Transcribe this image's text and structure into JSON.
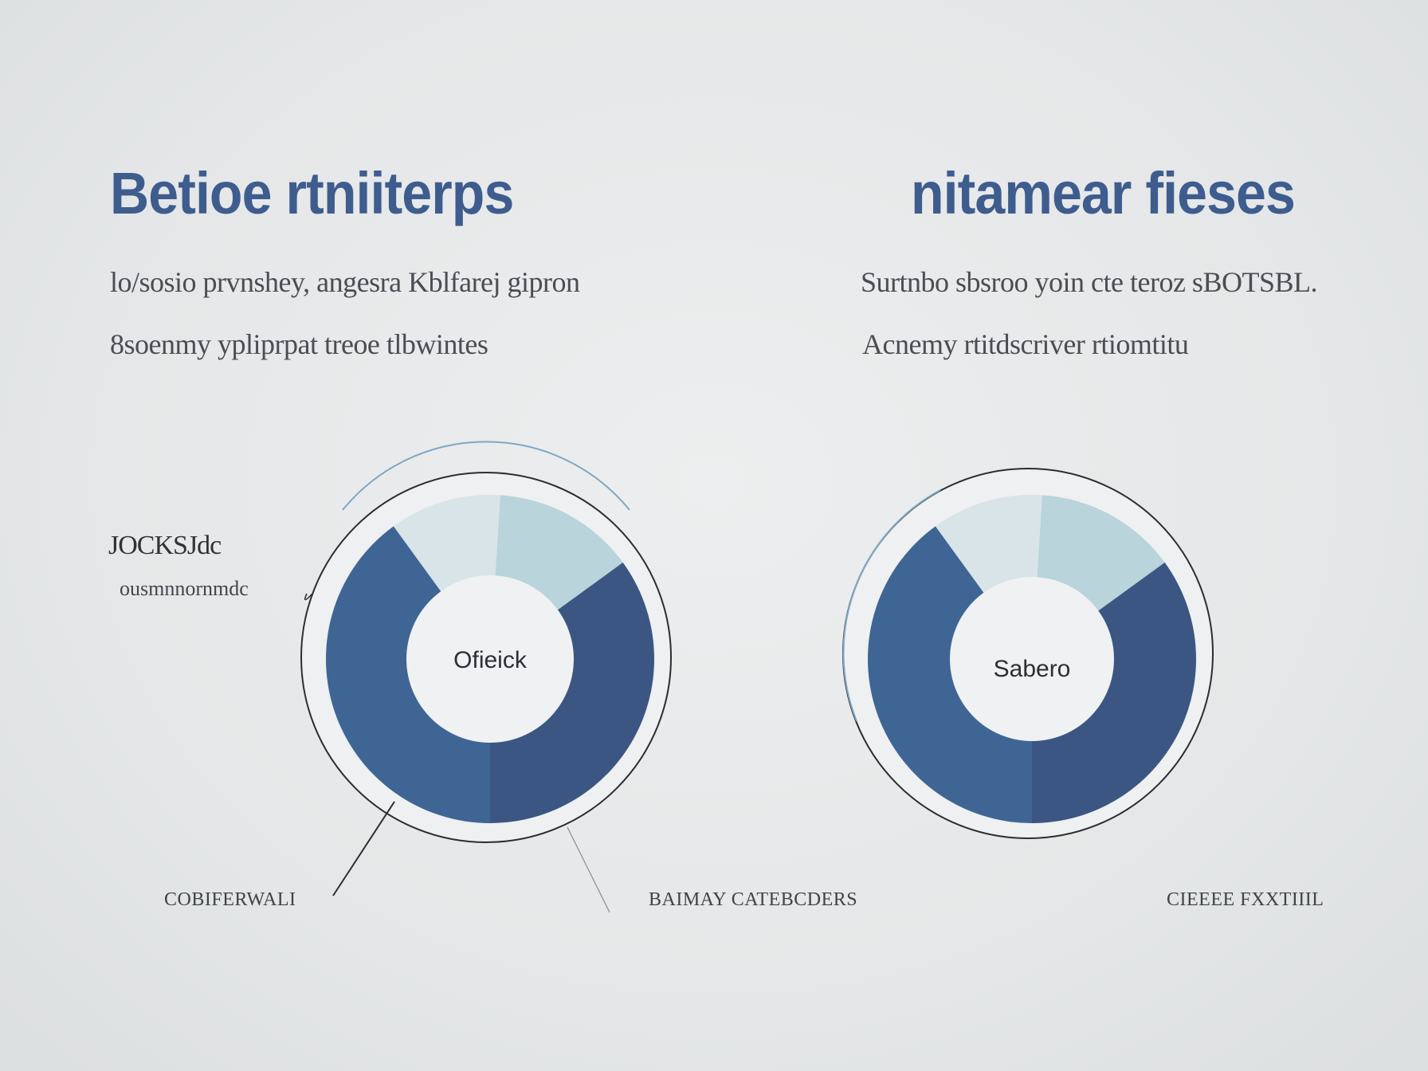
{
  "colors": {
    "title": "#3e5d8e",
    "dark_blue": "#3f6595",
    "navy": "#3b5682",
    "pale_blue": "#d8e4e8",
    "light_teal": "#b9d4da",
    "ring_line": "#2b2d30",
    "ring_line_blue": "#7fa7c2"
  },
  "left_panel": {
    "title": "Betioe rtniiterps",
    "description_line1": "lo/sosio prvnshey, angesra Kblfarej gipron",
    "description_line2": "8soenmy ypliprpat treoe tlbwintes",
    "callout_title": "JOCKSJdc",
    "callout_subtitle": "ousmnnornmdc",
    "bottom_label_left": "COBIFERWALI",
    "bottom_label_right": "BAIMAY CATEBCDERS"
  },
  "right_panel": {
    "title": "nitamear fieses",
    "description_line1": "Surtnbo sbsroo yoin cte teroz sBOTSBL.",
    "description_line2": "Acnemy rtitdscriver rtiomtitu",
    "bottom_label": "CIEEEE FXXTIIIL"
  },
  "chart_data": [
    {
      "type": "pie",
      "title": "",
      "center_label": "Ofieick",
      "slices": [
        {
          "value": 40,
          "color": "#3f6595"
        },
        {
          "value": 11,
          "color": "#d8e4e8"
        },
        {
          "value": 14,
          "color": "#b9d4da"
        },
        {
          "value": 35,
          "color": "#3b5682"
        }
      ]
    },
    {
      "type": "pie",
      "title": "",
      "center_label": "Sabero",
      "slices": [
        {
          "value": 40,
          "color": "#3f6595"
        },
        {
          "value": 11,
          "color": "#d8e4e8"
        },
        {
          "value": 14,
          "color": "#b9d4da"
        },
        {
          "value": 35,
          "color": "#3b5682"
        }
      ]
    }
  ]
}
